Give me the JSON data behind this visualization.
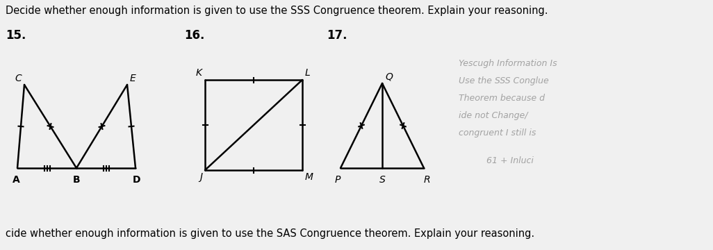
{
  "title_top": "Decide whether enough information is given to use the SSS Congruence theorem. Explain your reasoning.",
  "title_bottom": "cide whether enough information is given to use the SAS Congruence theorem. Explain your reasoning.",
  "title_fontsize": 10.5,
  "bg_color": "#f0f0f0",
  "labels": [
    "15.",
    "16.",
    "17."
  ],
  "label_fontsize": 12,
  "fig_width": 10.26,
  "fig_height": 3.6,
  "hw_lines": [
    [
      "Yescugh Information Is",
      660,
      275
    ],
    [
      "Use the SSS Conglue",
      660,
      250
    ],
    [
      "Theorem because d",
      660,
      225
    ],
    [
      "ide not Change/",
      660,
      200
    ],
    [
      "congruent I still is",
      660,
      175
    ],
    [
      "61 + Inluci",
      700,
      135
    ]
  ],
  "hw_color": "#888888",
  "hw_fontsize": 9
}
